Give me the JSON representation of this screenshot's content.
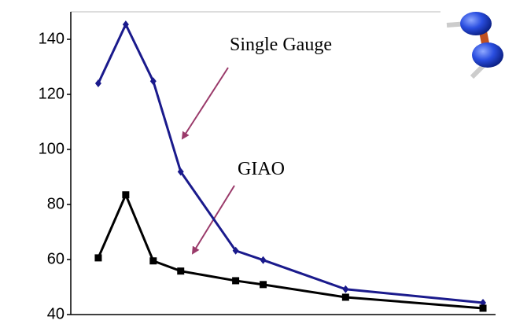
{
  "chart_data": {
    "type": "line",
    "x": [
      1,
      2,
      3,
      4,
      6,
      7,
      10,
      15
    ],
    "xlim": [
      0,
      15.4
    ],
    "ylim": [
      40,
      150
    ],
    "yticks": [
      40,
      60,
      80,
      100,
      120,
      140
    ],
    "series": [
      {
        "color": "#1a1a8c",
        "marker": "diamond",
        "values": [
          124,
          145.4,
          124.8,
          91.9,
          63.2,
          59.8,
          49.2,
          44.3
        ]
      },
      {
        "color": "#000000",
        "marker": "square",
        "values": [
          60.6,
          83.5,
          59.5,
          55.8,
          52.3,
          50.9,
          46.3,
          42.3
        ]
      }
    ],
    "annotations": [
      "Single Gauge",
      "GIAO"
    ]
  }
}
